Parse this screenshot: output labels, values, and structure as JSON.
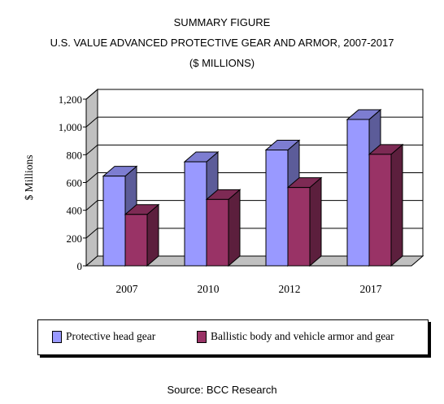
{
  "titles": [
    "SUMMARY FIGURE",
    "U.S. VALUE ADVANCED PROTECTIVE GEAR AND ARMOR, 2007-2017",
    "($ MILLIONS)"
  ],
  "source": "Source: BCC Research",
  "chart_data": {
    "type": "bar",
    "subtype": "3d-clustered-column",
    "title": "U.S. VALUE ADVANCED PROTECTIVE GEAR AND ARMOR, 2007-2017",
    "subtitle": "($ MILLIONS)",
    "ylabel": "$ Millions",
    "xlabel": "",
    "categories": [
      "2007",
      "2010",
      "2012",
      "2017"
    ],
    "series": [
      {
        "name": "Protective head gear",
        "values": [
          646,
          749,
          834,
          1054
        ],
        "color": "#9999ff"
      },
      {
        "name": "Ballistic body and vehicle armor and gear",
        "values": [
          370,
          478,
          564,
          803
        ],
        "color": "#993366"
      }
    ],
    "ylim": [
      0,
      1200
    ],
    "yticks": [
      "0",
      "200",
      "400",
      "600",
      "800",
      "1,000",
      "1,200"
    ],
    "grid": true,
    "legend_position": "bottom"
  }
}
